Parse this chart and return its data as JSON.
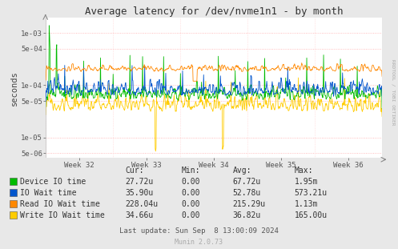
{
  "title": "Average latency for /dev/nvme1n1 - by month",
  "ylabel": "seconds",
  "background_color": "#e8e8e8",
  "plot_bg_color": "#ffffff",
  "grid_color_h": "#ffaaaa",
  "grid_color_v": "#ffcccc",
  "xtick_labels": [
    "Week 32",
    "Week 33",
    "Week 34",
    "Week 35",
    "Week 36"
  ],
  "ylim_log": [
    4e-06,
    0.002
  ],
  "yticks": [
    5e-06,
    1e-05,
    5e-05,
    0.0001,
    0.0005,
    0.001
  ],
  "ytick_labels": [
    "5e-06",
    "1e-05",
    "5e-05",
    "1e-04",
    "5e-04",
    "1e-03"
  ],
  "legend_entries": [
    {
      "label": "Device IO time",
      "color": "#00bb00"
    },
    {
      "label": "IO Wait time",
      "color": "#0055cc"
    },
    {
      "label": "Read IO Wait time",
      "color": "#ff8800"
    },
    {
      "label": "Write IO Wait time",
      "color": "#ffcc00"
    }
  ],
  "table_headers": [
    "Cur:",
    "Min:",
    "Avg:",
    "Max:"
  ],
  "table_rows": [
    [
      "Device IO time",
      "27.72u",
      "0.00",
      "67.72u",
      "1.95m"
    ],
    [
      "IO Wait time",
      "35.90u",
      "0.00",
      "52.78u",
      "573.21u"
    ],
    [
      "Read IO Wait time",
      "228.04u",
      "0.00",
      "215.29u",
      "1.13m"
    ],
    [
      "Write IO Wait time",
      "34.66u",
      "0.00",
      "36.82u",
      "165.00u"
    ]
  ],
  "footer": "Last update: Sun Sep  8 13:00:09 2024",
  "watermark": "Munin 2.0.73",
  "rrdtool_label": "RRDTOOL / TOBI OETIKER",
  "n_points": 800,
  "seed": 42,
  "colors": {
    "device_io": "#00bb00",
    "io_wait": "#0055cc",
    "read_io_wait": "#ff8800",
    "write_io_wait": "#ffcc00"
  }
}
